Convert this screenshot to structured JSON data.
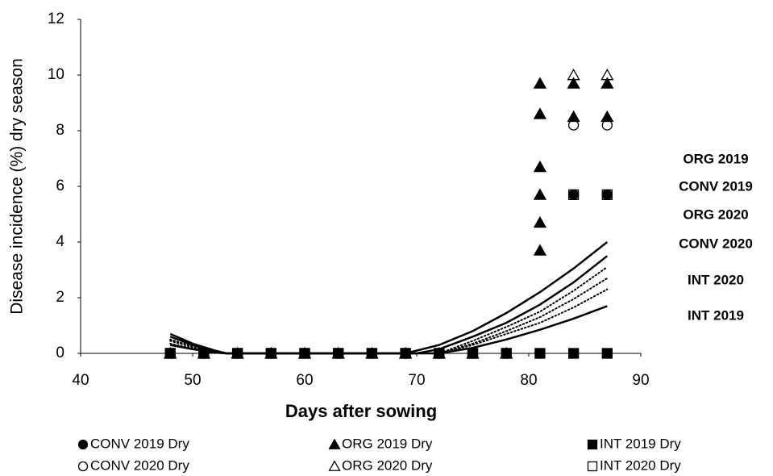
{
  "chart_data": {
    "type": "scatter",
    "x_label": "Days after sowing",
    "y_label": "Disease incidence (%) dry season",
    "xlim": [
      40,
      90
    ],
    "xticks": [
      40,
      50,
      60,
      70,
      80,
      90
    ],
    "ylim": [
      0,
      12
    ],
    "yticks": [
      0,
      2,
      4,
      6,
      8,
      10,
      12
    ],
    "grid": false,
    "legend": "bottom",
    "series": [
      {
        "name": "CONV 2019 Dry",
        "marker": "circle",
        "filled": true,
        "color": "#000000",
        "x": [
          48,
          51,
          54,
          57,
          60,
          63,
          66,
          69,
          72,
          75,
          78,
          81,
          84,
          87
        ],
        "values": [
          0,
          0,
          0,
          0,
          0,
          0,
          0,
          0,
          0,
          0,
          0,
          0,
          5.7,
          5.7
        ]
      },
      {
        "name": "ORG 2019 Dry",
        "marker": "triangle",
        "filled": true,
        "color": "#000000",
        "x": [
          48,
          51,
          54,
          57,
          60,
          63,
          66,
          69,
          72,
          75,
          78,
          81,
          81,
          81,
          81,
          81,
          81,
          84,
          84,
          87,
          87
        ],
        "values": [
          0,
          0,
          0,
          0,
          0,
          0,
          0,
          0,
          0,
          0,
          0,
          9.7,
          8.6,
          6.7,
          5.7,
          4.7,
          3.7,
          9.7,
          8.5,
          9.7,
          8.5
        ]
      },
      {
        "name": "INT 2019 Dry",
        "marker": "square",
        "filled": true,
        "color": "#000000",
        "x": [
          48,
          51,
          54,
          57,
          60,
          63,
          66,
          69,
          72,
          75,
          78,
          81,
          84,
          87
        ],
        "values": [
          0,
          0,
          0,
          0,
          0,
          0,
          0,
          0,
          0,
          0,
          0,
          0,
          0,
          0
        ]
      },
      {
        "name": "CONV 2020 Dry",
        "marker": "circle",
        "filled": false,
        "color": "#000000",
        "x": [
          48,
          51,
          54,
          57,
          60,
          63,
          66,
          69,
          72,
          75,
          78,
          84,
          87
        ],
        "values": [
          0,
          0,
          0,
          0,
          0,
          0,
          0,
          0,
          0,
          0,
          0,
          8.2,
          8.2
        ]
      },
      {
        "name": "ORG 2020 Dry",
        "marker": "triangle",
        "filled": false,
        "color": "#000000",
        "x": [
          48,
          51,
          54,
          57,
          60,
          63,
          66,
          69,
          72,
          75,
          78,
          84,
          87
        ],
        "values": [
          0,
          0,
          0,
          0,
          0,
          0,
          0,
          0,
          0,
          0,
          0,
          10,
          10
        ]
      },
      {
        "name": "INT 2020 Dry",
        "marker": "square",
        "filled": false,
        "color": "#000000",
        "x": [
          48,
          51,
          54,
          57,
          60,
          63,
          66,
          69,
          72,
          75,
          78,
          84,
          87
        ],
        "values": [
          0,
          0,
          0,
          0,
          0,
          0,
          0,
          0,
          0,
          0,
          0,
          5.7,
          5.7
        ]
      }
    ],
    "trendlines": [
      {
        "style": "solid",
        "x": [
          48,
          50,
          52,
          53,
          69,
          72,
          75,
          78,
          81,
          84,
          87
        ],
        "values": [
          0.7,
          0.35,
          0.1,
          0,
          0,
          0.3,
          0.8,
          1.45,
          2.2,
          3.05,
          4.0
        ]
      },
      {
        "style": "solid",
        "x": [
          48,
          50,
          52,
          53,
          70,
          72,
          75,
          78,
          81,
          84,
          87
        ],
        "values": [
          0.6,
          0.3,
          0.08,
          0,
          0,
          0.15,
          0.6,
          1.1,
          1.75,
          2.55,
          3.5
        ]
      },
      {
        "style": "dotted",
        "x": [
          48,
          50,
          52,
          53,
          72,
          75,
          78,
          81,
          84,
          87
        ],
        "values": [
          0.5,
          0.25,
          0.06,
          0,
          0,
          0.45,
          0.95,
          1.5,
          2.25,
          3.1
        ]
      },
      {
        "style": "dotted",
        "x": [
          48,
          50,
          52,
          53,
          72,
          75,
          78,
          81,
          84,
          87
        ],
        "values": [
          0.45,
          0.22,
          0.05,
          0,
          0,
          0.35,
          0.8,
          1.3,
          1.95,
          2.7
        ]
      },
      {
        "style": "dotted",
        "x": [
          48,
          50,
          52,
          53,
          72,
          75,
          78,
          81,
          84,
          87
        ],
        "values": [
          0.35,
          0.17,
          0.04,
          0,
          0,
          0.3,
          0.7,
          1.1,
          1.65,
          2.3
        ]
      },
      {
        "style": "solid",
        "x": [
          48,
          50,
          52,
          53,
          72,
          75,
          78,
          81,
          84,
          87
        ],
        "values": [
          0.3,
          0.15,
          0.03,
          0,
          0,
          0.2,
          0.5,
          0.85,
          1.25,
          1.7
        ]
      }
    ],
    "annotations": [
      "ORG 2019",
      "CONV 2019",
      "ORG 2020",
      "CONV 2020",
      "INT 2020",
      "INT 2019"
    ]
  }
}
